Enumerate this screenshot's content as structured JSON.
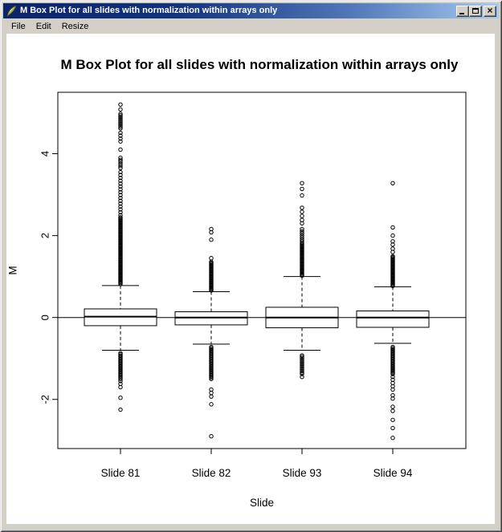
{
  "window": {
    "title": "M Box Plot for all slides with normalization within arrays only",
    "icon": "quill-icon",
    "buttons": {
      "items": [
        "minimize",
        "maximize",
        "close"
      ],
      "close_glyph": "×"
    }
  },
  "menu": {
    "items": [
      {
        "label": "File"
      },
      {
        "label": "Edit"
      },
      {
        "label": "Resize"
      }
    ]
  },
  "colors": {
    "titlebar_left": "#0A246A",
    "titlebar_right": "#A6CAF0",
    "frame": "#D4D0C8",
    "plot_background": "#FFFFFF",
    "plot_ink": "#000000"
  },
  "chart_data": {
    "type": "boxplot",
    "title": "M Box Plot for all slides with normalization within arrays only",
    "xlabel": "Slide",
    "ylabel": "M",
    "categories": [
      "Slide 81",
      "Slide 82",
      "Slide 93",
      "Slide 94"
    ],
    "ylim": [
      -3.2,
      5.5
    ],
    "yticks": [
      -2,
      0,
      2,
      4
    ],
    "reference_line_y": 0,
    "grid": false,
    "legend": false,
    "whisker_style": "dashed",
    "series": [
      {
        "label": "Slide 81",
        "median": 0.02,
        "q1": -0.2,
        "q3": 0.21,
        "whisker_low": -0.8,
        "whisker_high": 0.78,
        "outliers_dense": [
          [
            0.82,
            2.45,
            0.025
          ],
          [
            2.5,
            3.55,
            0.07
          ],
          [
            3.65,
            3.9,
            0.05
          ],
          [
            4.3,
            4.55,
            0.07
          ],
          [
            4.62,
            5.0,
            0.035
          ],
          [
            -1.5,
            -0.85,
            0.03
          ]
        ],
        "outliers": [
          4.1,
          5.08,
          5.2,
          -1.55,
          -1.62,
          -1.7,
          -1.96,
          -2.25
        ]
      },
      {
        "label": "Slide 82",
        "median": 0.0,
        "q1": -0.18,
        "q3": 0.14,
        "whisker_low": -0.65,
        "whisker_high": 0.63,
        "outliers_dense": [
          [
            0.66,
            1.38,
            0.025
          ],
          [
            -1.5,
            -0.72,
            0.03
          ]
        ],
        "outliers": [
          1.45,
          1.9,
          2.08,
          2.16,
          -1.76,
          -1.84,
          -1.93,
          -2.12,
          -2.9
        ]
      },
      {
        "label": "Slide 93",
        "median": 0.0,
        "q1": -0.25,
        "q3": 0.25,
        "whisker_low": -0.8,
        "whisker_high": 1.0,
        "outliers_dense": [
          [
            1.02,
            1.82,
            0.025
          ],
          [
            1.86,
            2.2,
            0.05
          ],
          [
            -1.38,
            -0.92,
            0.035
          ]
        ],
        "outliers": [
          2.3,
          2.38,
          2.48,
          2.58,
          2.68,
          2.98,
          3.14,
          3.28,
          -1.45
        ]
      },
      {
        "label": "Slide 94",
        "median": 0.0,
        "q1": -0.24,
        "q3": 0.16,
        "whisker_low": -0.63,
        "whisker_high": 0.75,
        "outliers_dense": [
          [
            0.77,
            1.5,
            0.025
          ],
          [
            -1.38,
            -0.7,
            0.03
          ]
        ],
        "outliers": [
          1.6,
          1.68,
          1.78,
          1.86,
          2.0,
          2.2,
          3.28,
          -1.45,
          -1.52,
          -1.6,
          -1.68,
          -1.76,
          -1.9,
          -1.98,
          -2.18,
          -2.28,
          -2.5,
          -2.7,
          -2.94
        ]
      }
    ]
  }
}
